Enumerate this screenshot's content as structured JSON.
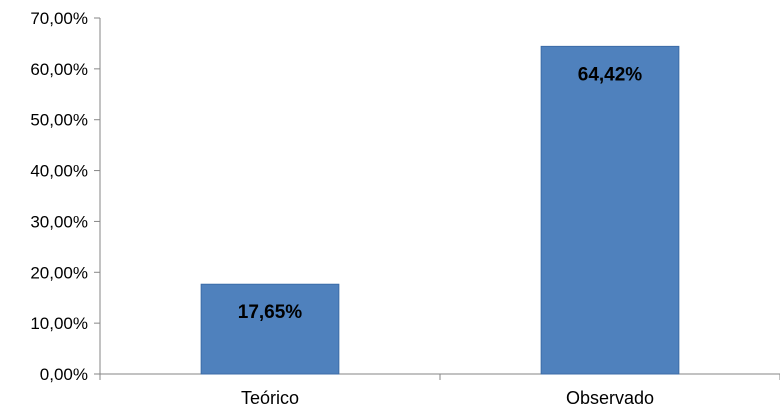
{
  "chart_data": {
    "type": "bar",
    "categories": [
      "Teórico",
      "Observado"
    ],
    "values": [
      17.65,
      64.42
    ],
    "data_labels": [
      "17,65%",
      "64,42%"
    ],
    "title": "",
    "xlabel": "",
    "ylabel": "",
    "ylim": [
      0,
      70
    ],
    "y_ticks": [
      0,
      10,
      20,
      30,
      40,
      50,
      60,
      70
    ],
    "y_tick_labels": [
      "0,00%",
      "10,00%",
      "20,00%",
      "30,00%",
      "40,00%",
      "50,00%",
      "60,00%",
      "70,00%"
    ],
    "grid": false,
    "legend": "none",
    "bar_color": "#4F81BD",
    "bar_border_color": "#3C6CA8"
  }
}
